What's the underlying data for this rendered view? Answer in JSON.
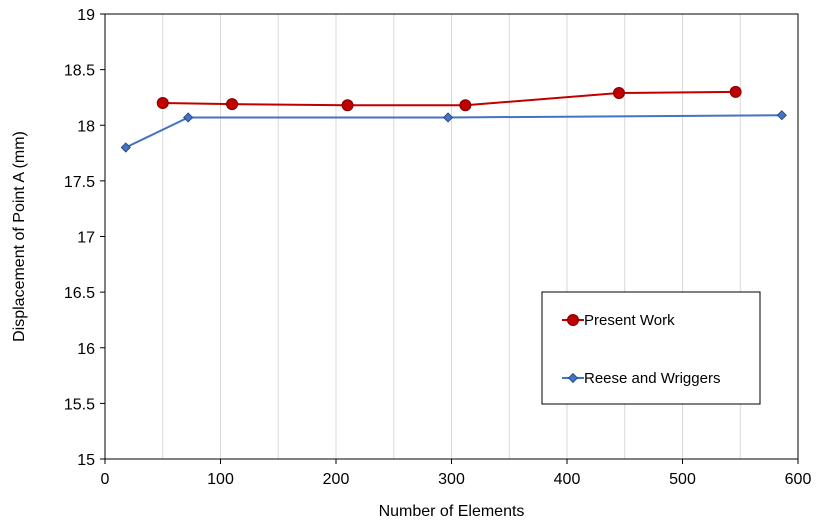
{
  "chart_data": {
    "type": "line",
    "xlabel": "Number of Elements",
    "ylabel": "Displacement of Point A (mm)",
    "xlim": [
      0,
      600
    ],
    "ylim": [
      15,
      19
    ],
    "xticks": [
      0,
      100,
      200,
      300,
      400,
      500,
      600
    ],
    "yticks": [
      15,
      15.5,
      16,
      16.5,
      17,
      17.5,
      18,
      18.5,
      19
    ],
    "grid": "vertical",
    "legend_position": "right-middle",
    "series": [
      {
        "name": "Present Work",
        "marker": "circle",
        "line_color": "#C00000",
        "marker_color": "#C00000",
        "x": [
          50,
          110,
          210,
          312,
          445,
          546
        ],
        "y": [
          18.2,
          18.19,
          18.18,
          18.18,
          18.29,
          18.3
        ]
      },
      {
        "name": "Reese and Wriggers",
        "marker": "diamond",
        "line_color": "#4472C4",
        "marker_color": "#4472C4",
        "x": [
          18,
          72,
          297,
          586
        ],
        "y": [
          17.8,
          18.07,
          18.07,
          18.09
        ]
      }
    ]
  }
}
